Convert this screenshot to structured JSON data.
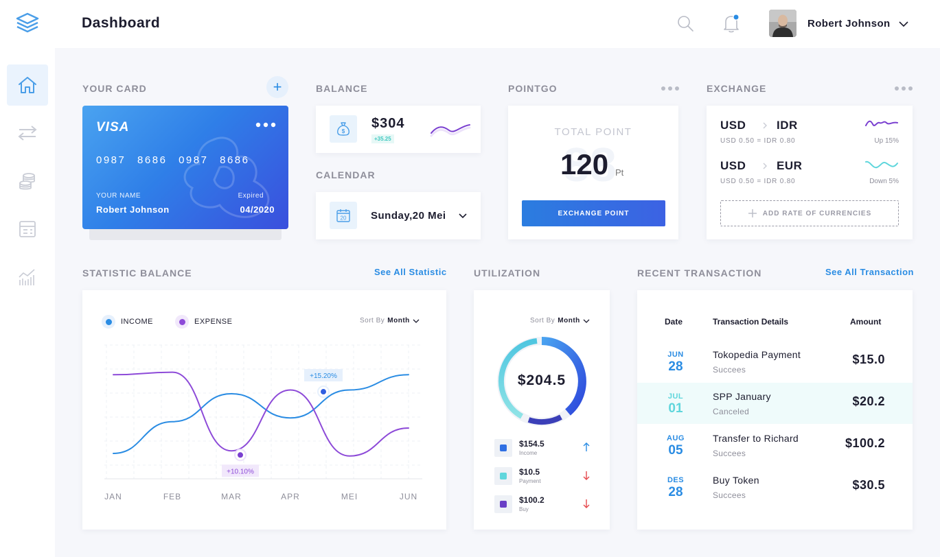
{
  "header": {
    "title": "Dashboard",
    "user_name": "Robert Johnson",
    "logo_icon": "layers-logo-icon",
    "search_icon": "search-icon",
    "bell_icon": "bell-icon",
    "notification_dot_color": "#2a8ce3"
  },
  "sidebar": {
    "items": [
      {
        "name": "home",
        "icon": "home-icon",
        "active": true
      },
      {
        "name": "transfer",
        "icon": "transfer-arrows-icon",
        "active": false
      },
      {
        "name": "coins",
        "icon": "coins-icon",
        "active": false
      },
      {
        "name": "invoice",
        "icon": "invoice-icon",
        "active": false
      },
      {
        "name": "analytics",
        "icon": "bar-chart-icon",
        "active": false
      }
    ]
  },
  "your_card": {
    "label": "YOUR CARD",
    "add_button": "+",
    "brand": "VISA",
    "number": "0987  8686  0987  8686",
    "name_label": "YOUR NAME",
    "name": "Robert Johnson",
    "expired_label": "Expired",
    "expired": "04/2020"
  },
  "balance": {
    "label": "BALANCE",
    "value": "$304",
    "change": "+35.25",
    "icon": "money-bag-icon"
  },
  "calendar": {
    "label": "CALENDAR",
    "date": "Sunday,20 Mei",
    "icon_day": "20"
  },
  "pointgo": {
    "label": "POINTGO",
    "total_label": "TOTAL POINT",
    "total_value": "120",
    "unit": "Pt",
    "watermark": "88",
    "button": "EXCHANGE POINT"
  },
  "exchange": {
    "label": "EXCHANGE",
    "rates": [
      {
        "from": "USD",
        "to": "IDR",
        "rate": "USD 0.50 = IDR 0.80",
        "trend": "Up 15%",
        "color": "#7a3fd0"
      },
      {
        "from": "USD",
        "to": "EUR",
        "rate": "USD 0.50 = IDR 0.80",
        "trend": "Down 5%",
        "color": "#5fd6dc"
      }
    ],
    "add_button": "ADD RATE OF CURRENCIES"
  },
  "statistic": {
    "label": "STATISTIC BALANCE",
    "link": "See All Statistic",
    "sort_label": "Sort By",
    "sort_value": "Month",
    "legend_income": "INCOME",
    "legend_expense": "EXPENSE",
    "income_color": "#2a8ce3",
    "expense_color": "#8d4ad8",
    "tooltip_income": "+15.20%",
    "tooltip_expense": "+10.10%"
  },
  "chart_data": {
    "type": "line",
    "categories": [
      "JAN",
      "FEB",
      "MAR",
      "APR",
      "MEI",
      "JUN"
    ],
    "series": [
      {
        "name": "INCOME",
        "values": [
          20,
          45,
          67,
          48,
          70,
          82
        ]
      },
      {
        "name": "EXPENSE",
        "values": [
          82,
          84,
          22,
          70,
          18,
          40
        ]
      }
    ],
    "annotations": [
      {
        "series": "INCOME",
        "label": "+15.20%"
      },
      {
        "series": "EXPENSE",
        "label": "+10.10%"
      }
    ],
    "legend": "top-left",
    "grid": true
  },
  "utilization": {
    "label": "UTILIZATION",
    "sort_label": "Sort By",
    "sort_value": "Month",
    "center_value": "$204.5",
    "items": [
      {
        "value": "$154.5",
        "label": "Income",
        "color": "#2f6fe3",
        "direction": "up"
      },
      {
        "value": "$10.5",
        "label": "Payment",
        "color": "#5fd6dc",
        "direction": "down"
      },
      {
        "value": "$100.2",
        "label": "Buy",
        "color": "#6a3fc6",
        "direction": "down"
      }
    ]
  },
  "transactions": {
    "label": "RECENT TRANSACTION",
    "link": "See All Transaction",
    "col_date": "Date",
    "col_details": "Transaction Details",
    "col_amount": "Amount",
    "rows": [
      {
        "month": "JUN",
        "day": "28",
        "detail": "Tokopedia Payment",
        "status": "Succees",
        "amount": "$15.0",
        "color": "#2a8ce3"
      },
      {
        "month": "JUL",
        "day": "01",
        "detail": "SPP January",
        "status": "Canceled",
        "amount": "$20.2",
        "color": "#5fd6dc"
      },
      {
        "month": "AUG",
        "day": "05",
        "detail": "Transfer to Richard",
        "status": "Succees",
        "amount": "$100.2",
        "color": "#2a8ce3"
      },
      {
        "month": "DES",
        "day": "28",
        "detail": "Buy Token",
        "status": "Succees",
        "amount": "$30.5",
        "color": "#2a8ce3"
      }
    ]
  }
}
